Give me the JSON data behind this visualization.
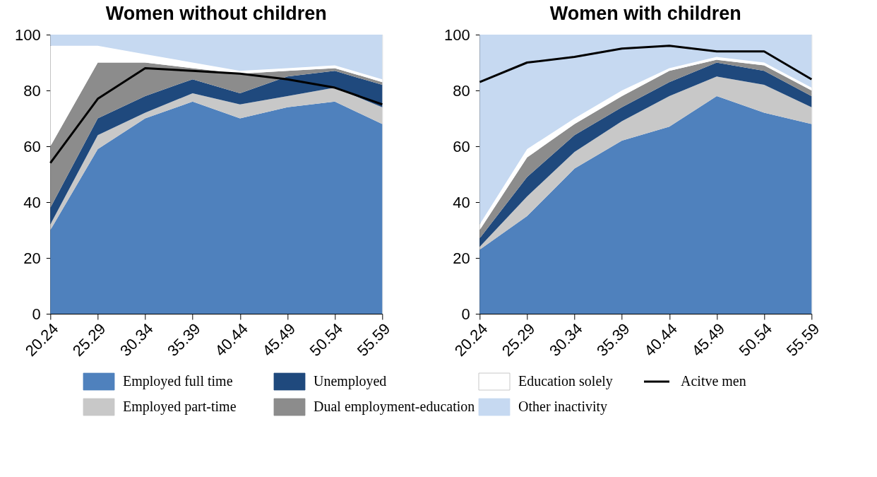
{
  "chart_data": [
    {
      "type": "area",
      "title": "Women without children",
      "categories": [
        "20.24",
        "25.29",
        "30.34",
        "35.39",
        "40.44",
        "45.49",
        "50.54",
        "55.59"
      ],
      "stacked": true,
      "ylim": [
        0,
        100
      ],
      "yticks": [
        0,
        20,
        40,
        60,
        80,
        100
      ],
      "legend": "bottom",
      "series": [
        {
          "name": "Employed full time",
          "color": "#4f81bd",
          "values": [
            30,
            59,
            70,
            76,
            70,
            74,
            76,
            68
          ]
        },
        {
          "name": "Employed part-time",
          "color": "#c8c8c8",
          "values": [
            2,
            5,
            2,
            3,
            5,
            4,
            5,
            6
          ]
        },
        {
          "name": "Unemployed",
          "color": "#1f497d",
          "values": [
            6,
            6,
            6,
            5,
            4,
            7,
            6,
            8
          ]
        },
        {
          "name": "Dual employment-education",
          "color": "#8c8c8c",
          "values": [
            22,
            20,
            12,
            4,
            7,
            2,
            1,
            1
          ]
        },
        {
          "name": "Education solely",
          "color": "#ffffff",
          "values": [
            36,
            6,
            3,
            2,
            1,
            1,
            1,
            1
          ]
        },
        {
          "name": "Other inactivity",
          "color": "#c6d9f1",
          "values": [
            4,
            4,
            7,
            10,
            13,
            12,
            11,
            16
          ]
        },
        {
          "name": "Acitve men",
          "color": "#000000",
          "type": "line",
          "values": [
            54,
            77,
            88,
            87,
            86,
            84,
            81,
            75
          ]
        }
      ]
    },
    {
      "type": "area",
      "title": "Women with children",
      "categories": [
        "20.24",
        "25.29",
        "30.34",
        "35.39",
        "40.44",
        "45.49",
        "50.54",
        "55.59"
      ],
      "stacked": true,
      "ylim": [
        0,
        100
      ],
      "yticks": [
        0,
        20,
        40,
        60,
        80,
        100
      ],
      "legend": "bottom",
      "series": [
        {
          "name": "Employed full time",
          "color": "#4f81bd",
          "values": [
            23,
            35,
            52,
            62,
            67,
            78,
            72,
            68
          ]
        },
        {
          "name": "Employed part-time",
          "color": "#c8c8c8",
          "values": [
            1,
            7,
            6,
            7,
            11,
            7,
            10,
            6
          ]
        },
        {
          "name": "Unemployed",
          "color": "#1f497d",
          "values": [
            3,
            7,
            6,
            5,
            5,
            5,
            5,
            4
          ]
        },
        {
          "name": "Dual employment-education",
          "color": "#8c8c8c",
          "values": [
            3,
            7,
            4,
            4,
            4,
            1,
            2,
            2
          ]
        },
        {
          "name": "Education solely",
          "color": "#ffffff",
          "values": [
            2,
            3,
            2,
            2,
            1,
            1,
            1,
            1
          ]
        },
        {
          "name": "Other inactivity",
          "color": "#c6d9f1",
          "values": [
            68,
            41,
            30,
            20,
            12,
            8,
            10,
            19
          ]
        },
        {
          "name": "Acitve men",
          "color": "#000000",
          "type": "line",
          "values": [
            83,
            90,
            92,
            95,
            96,
            94,
            94,
            84
          ]
        }
      ]
    }
  ]
}
